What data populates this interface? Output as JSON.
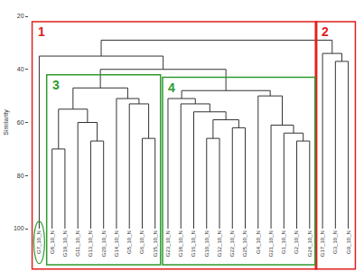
{
  "chart_data": {
    "type": "dendrogram",
    "y_label": "Similarity",
    "leaves": [
      "G7_10_N",
      "G8_10_N",
      "G19_10_N",
      "G11_10_N",
      "G13_10_N",
      "G20_10_N",
      "G14_10_N",
      "G5_10_N",
      "G6_10_N",
      "G15_10_N",
      "G23_10_N",
      "G18_10_N",
      "G16_10_N",
      "G10_10_N",
      "G12_10_N",
      "G22_10_N",
      "G25_10_N",
      "G4_10_N",
      "G21_10_N",
      "G1_10_N",
      "G2_10_N",
      "G24_10_N",
      "G17_10_N",
      "G3_10_N",
      "G9_10_N"
    ],
    "leaf_similarity": 100,
    "merges": [
      [
        1,
        2,
        70
      ],
      [
        4,
        5,
        67
      ],
      [
        3,
        26,
        60
      ],
      [
        25,
        27,
        55
      ],
      [
        8,
        9,
        66
      ],
      [
        7,
        29,
        53
      ],
      [
        6,
        30,
        51
      ],
      [
        28,
        31,
        47
      ],
      [
        13,
        14,
        66
      ],
      [
        15,
        16,
        62
      ],
      [
        33,
        34,
        59
      ],
      [
        12,
        35,
        56
      ],
      [
        11,
        36,
        53
      ],
      [
        10,
        37,
        51
      ],
      [
        20,
        21,
        67
      ],
      [
        19,
        39,
        64
      ],
      [
        18,
        40,
        61
      ],
      [
        17,
        41,
        50
      ],
      [
        38,
        42,
        48
      ],
      [
        32,
        43,
        40
      ],
      [
        0,
        44,
        35
      ],
      [
        23,
        24,
        37
      ],
      [
        22,
        46,
        34
      ],
      [
        45,
        47,
        29
      ]
    ],
    "color": "#333333",
    "ylim": [
      100,
      20
    ],
    "yticks": [
      20,
      40,
      60,
      80,
      100
    ],
    "groups": [
      {
        "label": "1",
        "color": "#e0201c",
        "from": "G7_10_N",
        "to": "G24_10_N"
      },
      {
        "label": "2",
        "color": "#e0201c",
        "from": "G17_10_N",
        "to": "G9_10_N"
      },
      {
        "label": "3",
        "color": "#2e9b2e",
        "from": "G8_10_N",
        "to": "G15_10_N"
      },
      {
        "label": "4",
        "color": "#2e9b2e",
        "from": "G23_10_N",
        "to": "G24_10_N"
      }
    ],
    "highlight": {
      "leaf": "G7_10_N",
      "color": "#2e9b2e"
    }
  }
}
